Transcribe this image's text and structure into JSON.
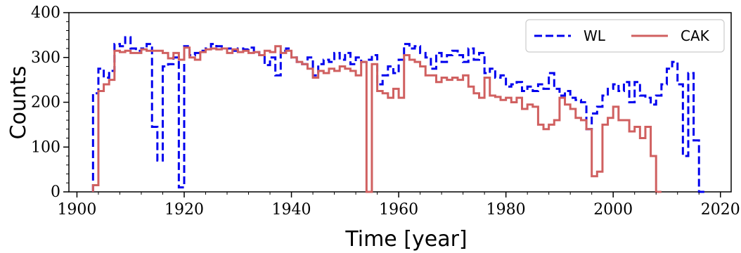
{
  "chart_data": {
    "type": "line",
    "title": "",
    "xlabel": "Time [year]",
    "ylabel": "Counts",
    "xlim": [
      1898.5,
      2022
    ],
    "ylim": [
      0,
      400
    ],
    "xticks": [
      1900,
      1920,
      1940,
      1960,
      1980,
      2000,
      2020
    ],
    "yticks": [
      0,
      100,
      200,
      300,
      400
    ],
    "grid": false,
    "legend": {
      "placement": "top-right",
      "columns": 2
    },
    "series": [
      {
        "name": "WL",
        "color": "#0000ee",
        "style": "dashed-step",
        "x": [
          1903,
          1904,
          1905,
          1906,
          1907,
          1908,
          1909,
          1910,
          1911,
          1912,
          1913,
          1914,
          1915,
          1916,
          1917,
          1918,
          1919,
          1920,
          1921,
          1922,
          1923,
          1924,
          1925,
          1926,
          1927,
          1928,
          1929,
          1930,
          1931,
          1932,
          1933,
          1934,
          1935,
          1936,
          1937,
          1938,
          1939,
          1940,
          1941,
          1942,
          1943,
          1944,
          1945,
          1946,
          1947,
          1948,
          1949,
          1950,
          1951,
          1952,
          1953,
          1954,
          1955,
          1956,
          1957,
          1958,
          1959,
          1960,
          1961,
          1962,
          1963,
          1964,
          1965,
          1966,
          1967,
          1968,
          1969,
          1970,
          1971,
          1972,
          1973,
          1974,
          1975,
          1976,
          1977,
          1978,
          1979,
          1980,
          1981,
          1982,
          1983,
          1984,
          1985,
          1986,
          1987,
          1988,
          1989,
          1990,
          1991,
          1992,
          1993,
          1994,
          1995,
          1996,
          1997,
          1998,
          1999,
          2000,
          2001,
          2002,
          2003,
          2004,
          2005,
          2006,
          2007,
          2008,
          2009,
          2010,
          2011,
          2012,
          2013,
          2014,
          2015,
          2016
        ],
        "y": [
          220,
          275,
          255,
          270,
          330,
          325,
          345,
          320,
          315,
          320,
          330,
          145,
          70,
          280,
          285,
          300,
          10,
          325,
          305,
          310,
          315,
          320,
          330,
          325,
          320,
          320,
          315,
          320,
          318,
          322,
          312,
          305,
          283,
          300,
          260,
          315,
          320,
          300,
          290,
          285,
          300,
          260,
          285,
          295,
          290,
          310,
          295,
          310,
          285,
          300,
          290,
          295,
          305,
          240,
          260,
          280,
          265,
          295,
          330,
          320,
          325,
          310,
          300,
          275,
          310,
          290,
          305,
          315,
          305,
          290,
          320,
          295,
          310,
          265,
          275,
          255,
          260,
          235,
          240,
          245,
          225,
          235,
          225,
          240,
          230,
          265,
          230,
          215,
          225,
          210,
          205,
          200,
          140,
          175,
          190,
          215,
          230,
          240,
          225,
          245,
          200,
          245,
          215,
          210,
          195,
          215,
          240,
          275,
          290,
          240,
          80,
          265,
          115,
          0
        ]
      },
      {
        "name": "CAK",
        "color": "#d06060",
        "style": "solid-step",
        "x": [
          1903,
          1904,
          1905,
          1906,
          1907,
          1908,
          1909,
          1910,
          1911,
          1912,
          1913,
          1914,
          1915,
          1916,
          1917,
          1918,
          1919,
          1920,
          1921,
          1922,
          1923,
          1924,
          1925,
          1926,
          1927,
          1928,
          1929,
          1930,
          1931,
          1932,
          1933,
          1934,
          1935,
          1936,
          1937,
          1938,
          1939,
          1940,
          1941,
          1942,
          1943,
          1944,
          1945,
          1946,
          1947,
          1948,
          1949,
          1950,
          1951,
          1952,
          1953,
          1954,
          1955,
          1956,
          1957,
          1958,
          1959,
          1960,
          1961,
          1962,
          1963,
          1964,
          1965,
          1966,
          1967,
          1968,
          1969,
          1970,
          1971,
          1972,
          1973,
          1974,
          1975,
          1976,
          1977,
          1978,
          1979,
          1980,
          1981,
          1982,
          1983,
          1984,
          1985,
          1986,
          1987,
          1988,
          1989,
          1990,
          1991,
          1992,
          1993,
          1994,
          1995,
          1996,
          1997,
          1998,
          1999,
          2000,
          2001,
          2002,
          2003,
          2004,
          2005,
          2006,
          2007,
          2008
        ],
        "y": [
          15,
          225,
          240,
          250,
          315,
          312,
          315,
          310,
          310,
          318,
          315,
          315,
          315,
          310,
          298,
          310,
          295,
          322,
          300,
          295,
          312,
          318,
          320,
          318,
          320,
          310,
          318,
          312,
          315,
          310,
          312,
          305,
          315,
          312,
          325,
          310,
          315,
          300,
          290,
          285,
          275,
          255,
          270,
          265,
          275,
          270,
          280,
          275,
          270,
          260,
          290,
          0,
          285,
          225,
          220,
          210,
          230,
          210,
          305,
          295,
          290,
          280,
          260,
          260,
          245,
          255,
          250,
          255,
          250,
          260,
          235,
          220,
          210,
          255,
          215,
          212,
          205,
          210,
          200,
          210,
          185,
          195,
          190,
          150,
          140,
          150,
          160,
          210,
          195,
          185,
          165,
          160,
          140,
          35,
          45,
          150,
          165,
          190,
          160,
          160,
          135,
          145,
          120,
          145,
          80,
          0
        ]
      }
    ]
  }
}
